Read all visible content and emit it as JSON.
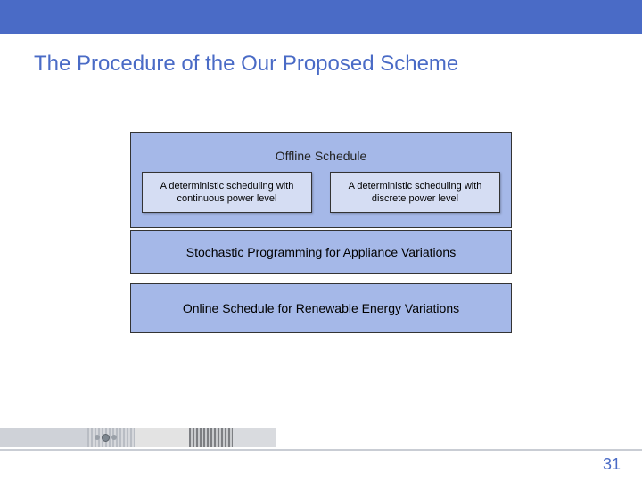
{
  "colors": {
    "primary": "#4a6bc6",
    "box_fill": "#a5b8e8",
    "inner_fill": "#d5ddf3",
    "border": "#333333",
    "background": "#ffffff"
  },
  "title": "The Procedure of the Our Proposed Scheme",
  "diagram": {
    "offline": {
      "heading": "Offline Schedule",
      "left": "A deterministic scheduling with continuous power level",
      "right": "A deterministic scheduling with discrete power level"
    },
    "stochastic": "Stochastic Programming for Appliance Variations",
    "online": "Online Schedule for Renewable Energy Variations"
  },
  "page_number": "31",
  "layout": {
    "slide_width": 720,
    "slide_height": 540,
    "title_fontsize": 24,
    "box_fontsize": 14,
    "inner_fontsize": 11
  }
}
